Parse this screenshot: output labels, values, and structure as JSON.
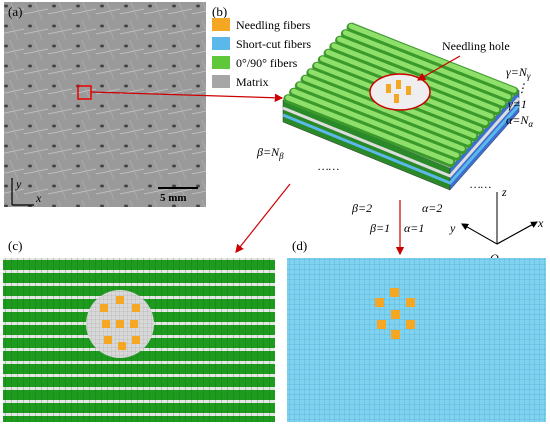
{
  "panels": {
    "a": "(a)",
    "b": "(b)",
    "c": "(c)",
    "d": "(d)"
  },
  "panel_a": {
    "scale_bar": "5 mm",
    "axis_y": "y",
    "axis_x": "x"
  },
  "legend": [
    {
      "label": "Needling fibers",
      "color": "#f5a623"
    },
    {
      "label": "Short-cut fibers",
      "color": "#5bb8ea"
    },
    {
      "label": "0°/90° fibers",
      "color": "#5ec83a"
    },
    {
      "label": "Matrix",
      "color": "#a6a6a6"
    }
  ],
  "annotations": {
    "needling_hole": "Needling hole",
    "gamma_n": {
      "main": "γ=N",
      "sub": "γ"
    },
    "vdots": "⋮",
    "gamma_1": "γ=1",
    "alpha_n": {
      "main": "α=N",
      "sub": "α"
    },
    "beta_n": {
      "main": "β=N",
      "sub": "β"
    },
    "dots_left": "……",
    "dots_right": "……",
    "beta_2": "β=2",
    "beta_1": "β=1",
    "alpha_2": "α=2",
    "alpha_1": "α=1",
    "axis_z": "z",
    "axis_y": "y",
    "axis_x": "x",
    "origin": "O"
  }
}
